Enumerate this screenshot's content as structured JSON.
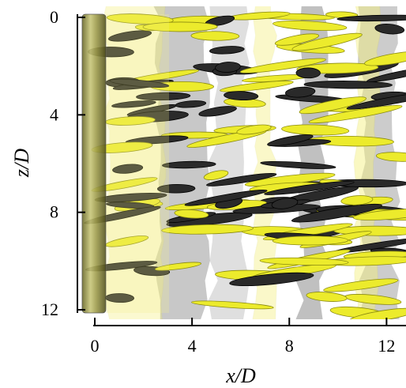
{
  "chart_data": {
    "type": "visualization",
    "x_label": "x/D",
    "y_label": "z/D",
    "xlim": [
      0,
      12.8
    ],
    "xticks": [
      0,
      4,
      8,
      12
    ],
    "ylim": [
      0,
      12
    ],
    "yticks": [
      0,
      4,
      8,
      12
    ],
    "y_inverted": true
  }
}
